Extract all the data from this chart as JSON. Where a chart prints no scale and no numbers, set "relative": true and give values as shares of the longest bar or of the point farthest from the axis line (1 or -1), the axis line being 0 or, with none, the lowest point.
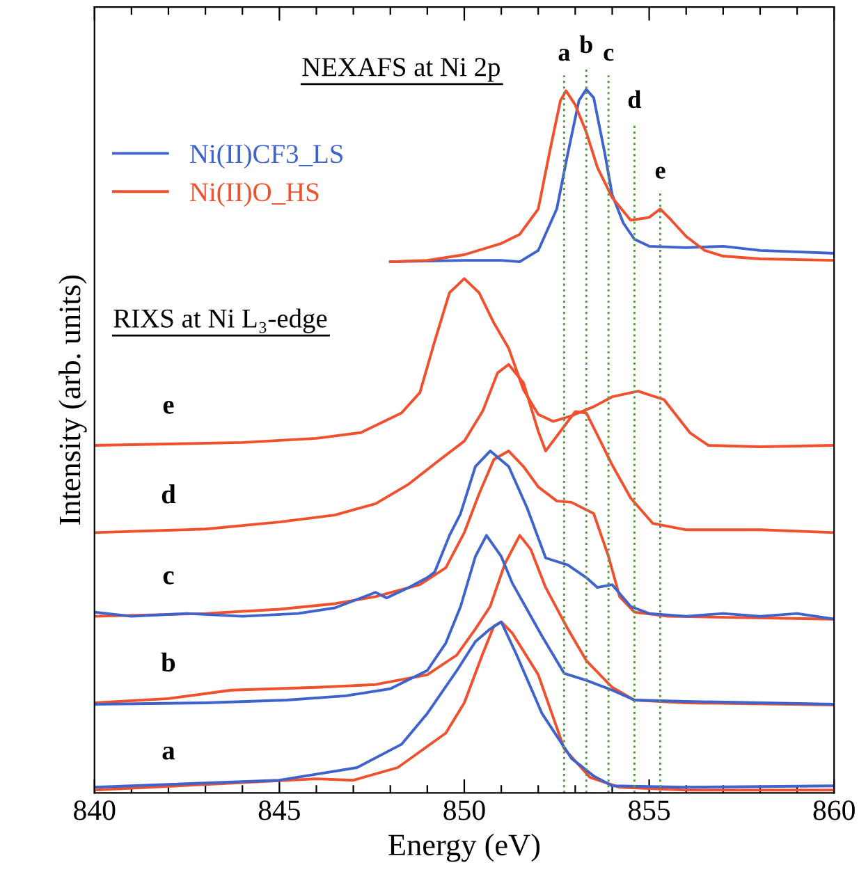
{
  "chart_data": {
    "type": "line",
    "relative": true,
    "xlabel": "Energy (eV)",
    "ylabel": "Intensity (arb. units)",
    "xlim": [
      840,
      860
    ],
    "xticks": [
      840,
      {
        "value": 841,
        "label": null
      },
      {
        "value": 842,
        "label": null
      },
      {
        "value": 843,
        "label": null
      },
      {
        "value": 844,
        "label": null
      },
      845,
      {
        "value": 846,
        "label": null
      },
      {
        "value": 847,
        "label": null
      },
      {
        "value": 848,
        "label": null
      },
      {
        "value": 849,
        "label": null
      },
      850,
      {
        "value": 851,
        "label": null
      },
      {
        "value": 852,
        "label": null
      },
      {
        "value": 853,
        "label": null
      },
      {
        "value": 854,
        "label": null
      },
      855,
      {
        "value": 856,
        "label": null
      },
      {
        "value": 857,
        "label": null
      },
      {
        "value": 858,
        "label": null
      },
      {
        "value": 859,
        "label": null
      },
      860
    ],
    "tick_labels": "x",
    "grid": false,
    "legend": "top left",
    "marker": "none",
    "line_style": "solid",
    "series": [
      {
        "name": "Ni(II)CF3_LS",
        "color": "#3f63cc",
        "x": [
          848,
          850,
          851,
          851.5,
          852,
          852.5,
          852.8,
          853.1,
          853.3,
          853.5,
          853.8,
          854,
          854.3,
          854.6,
          855,
          856,
          857,
          858,
          860
        ],
        "values": [
          0.755,
          0.757,
          0.757,
          0.755,
          0.771,
          0.83,
          0.909,
          0.984,
          1.0,
          0.988,
          0.909,
          0.85,
          0.81,
          0.787,
          0.777,
          0.775,
          0.777,
          0.771,
          0.767
        ]
      },
      {
        "name": "Ni(II)O_HS",
        "color": "#f0502d",
        "x": [
          848,
          849,
          850,
          851,
          851.5,
          852,
          852.3,
          852.6,
          852.75,
          853,
          853.3,
          853.6,
          854,
          854.5,
          855,
          855.3,
          855.6,
          856,
          856.5,
          857,
          858,
          860
        ],
        "values": [
          0.755,
          0.757,
          0.765,
          0.781,
          0.794,
          0.83,
          0.909,
          0.984,
          0.998,
          0.978,
          0.939,
          0.889,
          0.846,
          0.814,
          0.818,
          0.83,
          0.814,
          0.791,
          0.771,
          0.763,
          0.759,
          0.757
        ]
      },
      {
        "color": "#f0502d",
        "x": [
          840,
          844,
          846,
          847.2,
          848.3,
          848.8,
          849.2,
          849.6,
          850.0,
          850.4,
          850.8,
          851.2,
          851.6,
          852.0,
          852.4,
          852.9,
          853.5,
          854.0,
          854.7,
          855.4,
          856.1,
          856.6,
          858,
          860
        ],
        "values": [
          0.494,
          0.498,
          0.504,
          0.512,
          0.54,
          0.569,
          0.642,
          0.711,
          0.731,
          0.711,
          0.668,
          0.632,
          0.573,
          0.538,
          0.528,
          0.536,
          0.549,
          0.563,
          0.571,
          0.559,
          0.512,
          0.494,
          0.492,
          0.494
        ]
      },
      {
        "color": "#f0502d",
        "x": [
          840,
          843,
          845,
          846.5,
          847.6,
          848.5,
          849.3,
          850,
          850.5,
          850.9,
          851.2,
          851.6,
          852.0,
          852.2,
          852.6,
          853.0,
          853.3,
          853.7,
          854.0,
          854.5,
          855.1,
          856,
          858,
          860
        ],
        "values": [
          0.37,
          0.375,
          0.385,
          0.395,
          0.411,
          0.439,
          0.472,
          0.5,
          0.543,
          0.597,
          0.609,
          0.583,
          0.514,
          0.486,
          0.514,
          0.542,
          0.54,
          0.498,
          0.466,
          0.419,
          0.383,
          0.374,
          0.374,
          0.37
        ]
      },
      {
        "color": "#f0502d",
        "x": [
          840,
          843,
          845,
          846.5,
          847.6,
          848.8,
          849.5,
          850.0,
          850.4,
          850.8,
          851.2,
          851.6,
          852.0,
          852.5,
          852.9,
          853.5,
          853.9,
          854.2,
          854.6,
          855.5,
          860
        ],
        "values": [
          0.251,
          0.255,
          0.261,
          0.269,
          0.279,
          0.296,
          0.32,
          0.37,
          0.425,
          0.474,
          0.486,
          0.464,
          0.435,
          0.415,
          0.413,
          0.397,
          0.336,
          0.279,
          0.257,
          0.251,
          0.247
        ]
      },
      {
        "color": "#3f63cc",
        "x": [
          840,
          841,
          842.5,
          844,
          845.5,
          846.5,
          847.6,
          847.9,
          848.5,
          849.0,
          849.2,
          849.6,
          849.9,
          850.3,
          850.7,
          851.2,
          851.7,
          852.2,
          852.8,
          853.3,
          853.6,
          854.0,
          854.5,
          855.0,
          856,
          857,
          858,
          859,
          860
        ],
        "values": [
          0.257,
          0.251,
          0.255,
          0.251,
          0.255,
          0.263,
          0.285,
          0.277,
          0.292,
          0.306,
          0.314,
          0.366,
          0.397,
          0.464,
          0.486,
          0.464,
          0.405,
          0.334,
          0.324,
          0.306,
          0.292,
          0.296,
          0.265,
          0.255,
          0.251,
          0.255,
          0.251,
          0.255,
          0.247
        ]
      },
      {
        "color": "#f0502d",
        "x": [
          840,
          842,
          843.7,
          846,
          847.6,
          849.0,
          849.8,
          850.3,
          850.7,
          851.1,
          851.5,
          851.8,
          852.2,
          852.8,
          853.3,
          854.0,
          854.6,
          856,
          860
        ],
        "values": [
          0.128,
          0.134,
          0.146,
          0.15,
          0.154,
          0.168,
          0.196,
          0.233,
          0.265,
          0.326,
          0.366,
          0.346,
          0.292,
          0.233,
          0.188,
          0.15,
          0.132,
          0.128,
          0.125
        ]
      },
      {
        "color": "#3f63cc",
        "x": [
          840,
          843,
          845.2,
          846.8,
          848,
          849.0,
          849.5,
          849.9,
          850.3,
          850.6,
          851.0,
          851.3,
          852.1,
          852.7,
          853.3,
          854.0,
          854.6,
          856,
          860
        ],
        "values": [
          0.126,
          0.128,
          0.132,
          0.138,
          0.148,
          0.174,
          0.213,
          0.265,
          0.336,
          0.366,
          0.336,
          0.298,
          0.223,
          0.17,
          0.16,
          0.146,
          0.132,
          0.13,
          0.126
        ]
      },
      {
        "color": "#f0502d",
        "x": [
          840,
          843,
          846,
          847,
          848.2,
          849.5,
          850.0,
          850.5,
          850.8,
          851.0,
          851.3,
          852.0,
          852.7,
          853.4,
          854.2,
          856,
          860
        ],
        "values": [
          0.004,
          0.012,
          0.02,
          0.018,
          0.036,
          0.085,
          0.128,
          0.198,
          0.237,
          0.243,
          0.227,
          0.168,
          0.063,
          0.022,
          0.008,
          0.004,
          0.004
        ]
      },
      {
        "color": "#3f63cc",
        "x": [
          840,
          842,
          845,
          847.1,
          848.3,
          849.0,
          849.8,
          850.3,
          850.7,
          851.0,
          851.4,
          852.1,
          852.9,
          853.5,
          854.0,
          856,
          860
        ],
        "values": [
          0.008,
          0.012,
          0.018,
          0.036,
          0.069,
          0.113,
          0.174,
          0.215,
          0.233,
          0.243,
          0.198,
          0.113,
          0.049,
          0.024,
          0.01,
          0.008,
          0.01
        ]
      }
    ],
    "ref_lines": [
      {
        "axis": "x",
        "value": 852.7,
        "label": "a",
        "color": "#5aa040",
        "line_style": "dotted"
      },
      {
        "axis": "x",
        "value": 853.3,
        "label": "b",
        "color": "#5aa040",
        "line_style": "dotted"
      },
      {
        "axis": "x",
        "value": 853.9,
        "label": "c",
        "color": "#5aa040",
        "line_style": "dotted"
      },
      {
        "axis": "x",
        "value": 854.6,
        "label": "d",
        "color": "#5aa040",
        "line_style": "dotted"
      },
      {
        "axis": "x",
        "value": 855.3,
        "label": "e",
        "color": "#5aa040",
        "line_style": "dotted"
      }
    ],
    "annotations": [
      "NEXAFS at Ni 2p",
      "RIXS at Ni L₃-edge",
      "e",
      "d",
      "c",
      "b",
      "a"
    ]
  }
}
